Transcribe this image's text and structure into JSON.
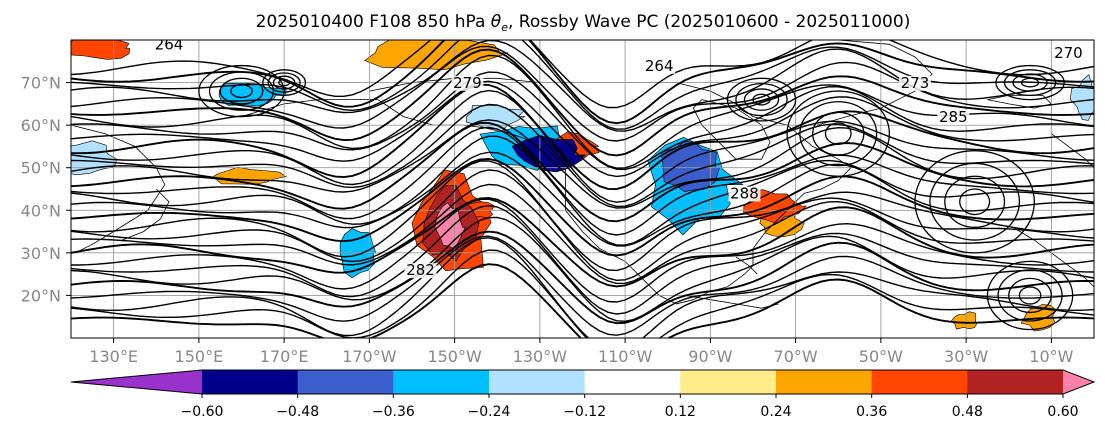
{
  "chart_data": {
    "type": "heatmap",
    "title": "2025010400 F108 850 hPa θe, Rossby Wave PC (2025010600 - 2025011000)",
    "title_parts": {
      "before": "2025010400 F108 850 hPa ",
      "theta": "θ",
      "subscript": "e",
      "after": ", Rossby Wave PC (2025010600 - 2025011000)"
    },
    "map_projection": "equirectangular, Northern Hemisphere",
    "lon_range": [
      120,
      360
    ],
    "lat_range": [
      10,
      80
    ],
    "x_ticks": [
      {
        "lon": 130,
        "label": "130°E"
      },
      {
        "lon": 150,
        "label": "150°E"
      },
      {
        "lon": 170,
        "label": "170°E"
      },
      {
        "lon": 190,
        "label": "170°W"
      },
      {
        "lon": 210,
        "label": "150°W"
      },
      {
        "lon": 230,
        "label": "130°W"
      },
      {
        "lon": 250,
        "label": "110°W"
      },
      {
        "lon": 270,
        "label": "90°W"
      },
      {
        "lon": 290,
        "label": "70°W"
      },
      {
        "lon": 310,
        "label": "50°W"
      },
      {
        "lon": 330,
        "label": "30°W"
      },
      {
        "lon": 350,
        "label": "10°W"
      }
    ],
    "y_ticks": [
      {
        "lat": 20,
        "label": "20°N"
      },
      {
        "lat": 30,
        "label": "30°N"
      },
      {
        "lat": 40,
        "label": "40°N"
      },
      {
        "lat": 50,
        "label": "50°N"
      },
      {
        "lat": 60,
        "label": "60°N"
      },
      {
        "lat": 70,
        "label": "70°N"
      }
    ],
    "grid": true,
    "colorbar": {
      "orientation": "horizontal",
      "extend": "both",
      "boundaries": [
        -0.72,
        -0.6,
        -0.48,
        -0.36,
        -0.24,
        -0.12,
        0.12,
        0.24,
        0.36,
        0.48,
        0.6,
        0.72
      ],
      "colors": [
        "#9932CC",
        "#00008B",
        "#3A5FCD",
        "#00BFFF",
        "#B0E2FF",
        "#FFFFFF",
        "#FFEC8B",
        "#FFA500",
        "#FF4500",
        "#B22222",
        "#FF82AB"
      ],
      "tick_values": [
        -0.6,
        -0.48,
        -0.36,
        -0.24,
        -0.12,
        0.12,
        0.24,
        0.36,
        0.48,
        0.6
      ],
      "tick_labels": [
        "−0.60",
        "−0.48",
        "−0.36",
        "−0.24",
        "−0.12",
        "0.12",
        "0.24",
        "0.36",
        "0.48",
        "0.60"
      ]
    },
    "contour_labels": [
      {
        "text": "264",
        "lon": 143,
        "lat": 78
      },
      {
        "text": "285",
        "lon": 327,
        "lat": 61
      },
      {
        "text": "270",
        "lon": 354,
        "lat": 76
      },
      {
        "text": "264",
        "lon": 258,
        "lat": 73
      },
      {
        "text": "273",
        "lon": 318,
        "lat": 69
      },
      {
        "text": "279",
        "lon": 213,
        "lat": 69
      },
      {
        "text": "282",
        "lon": 202,
        "lat": 25
      },
      {
        "text": "288",
        "lon": 278,
        "lat": 43
      }
    ],
    "shaded_anomalies": [
      {
        "sign": "negative",
        "value": -0.6,
        "lon": 232,
        "lat": 53,
        "rlon": 8,
        "rlat": 4
      },
      {
        "sign": "negative",
        "value": -0.48,
        "lon": 265,
        "lat": 50,
        "rlon": 6,
        "rlat": 7
      },
      {
        "sign": "negative",
        "value": -0.36,
        "lon": 227,
        "lat": 55,
        "rlon": 11,
        "rlat": 6
      },
      {
        "sign": "negative",
        "value": -0.36,
        "lon": 266,
        "lat": 46,
        "rlon": 10,
        "rlat": 11
      },
      {
        "sign": "negative",
        "value": -0.24,
        "lon": 123,
        "lat": 52,
        "rlon": 8,
        "rlat": 4
      },
      {
        "sign": "negative",
        "value": -0.36,
        "lon": 162,
        "lat": 67,
        "rlon": 8,
        "rlat": 3
      },
      {
        "sign": "negative",
        "value": -0.36,
        "lon": 187,
        "lat": 30,
        "rlon": 4,
        "rlat": 5
      },
      {
        "sign": "negative",
        "value": -0.24,
        "lon": 358,
        "lat": 66,
        "rlon": 3,
        "rlat": 5
      },
      {
        "sign": "negative",
        "value": -0.24,
        "lon": 219,
        "lat": 62,
        "rlon": 7,
        "rlat": 3
      },
      {
        "sign": "positive",
        "value": 0.6,
        "lon": 209,
        "lat": 36,
        "rlon": 3,
        "rlat": 6
      },
      {
        "sign": "positive",
        "value": 0.48,
        "lon": 209,
        "lat": 37,
        "rlon": 6,
        "rlat": 9
      },
      {
        "sign": "positive",
        "value": 0.36,
        "lon": 210,
        "lat": 37,
        "rlon": 9,
        "rlat": 11
      },
      {
        "sign": "positive",
        "value": 0.36,
        "lon": 284,
        "lat": 41,
        "rlon": 7,
        "rlat": 4
      },
      {
        "sign": "positive",
        "value": 0.36,
        "lon": 238,
        "lat": 55,
        "rlon": 6,
        "rlat": 3
      },
      {
        "sign": "positive",
        "value": 0.36,
        "lon": 127,
        "lat": 78,
        "rlon": 8,
        "rlat": 3
      },
      {
        "sign": "positive",
        "value": 0.36,
        "lon": 215,
        "lat": 40,
        "rlon": 4,
        "rlat": 2
      },
      {
        "sign": "positive",
        "value": 0.24,
        "lon": 204,
        "lat": 77,
        "rlon": 16,
        "rlat": 4
      },
      {
        "sign": "positive",
        "value": 0.24,
        "lon": 161,
        "lat": 48,
        "rlon": 8,
        "rlat": 2
      },
      {
        "sign": "positive",
        "value": 0.24,
        "lon": 286,
        "lat": 37,
        "rlon": 5,
        "rlat": 3
      },
      {
        "sign": "positive",
        "value": 0.24,
        "lon": 330,
        "lat": 14,
        "rlon": 3,
        "rlat": 2
      },
      {
        "sign": "positive",
        "value": 0.24,
        "lon": 347,
        "lat": 15,
        "rlon": 4,
        "rlat": 3
      }
    ]
  }
}
